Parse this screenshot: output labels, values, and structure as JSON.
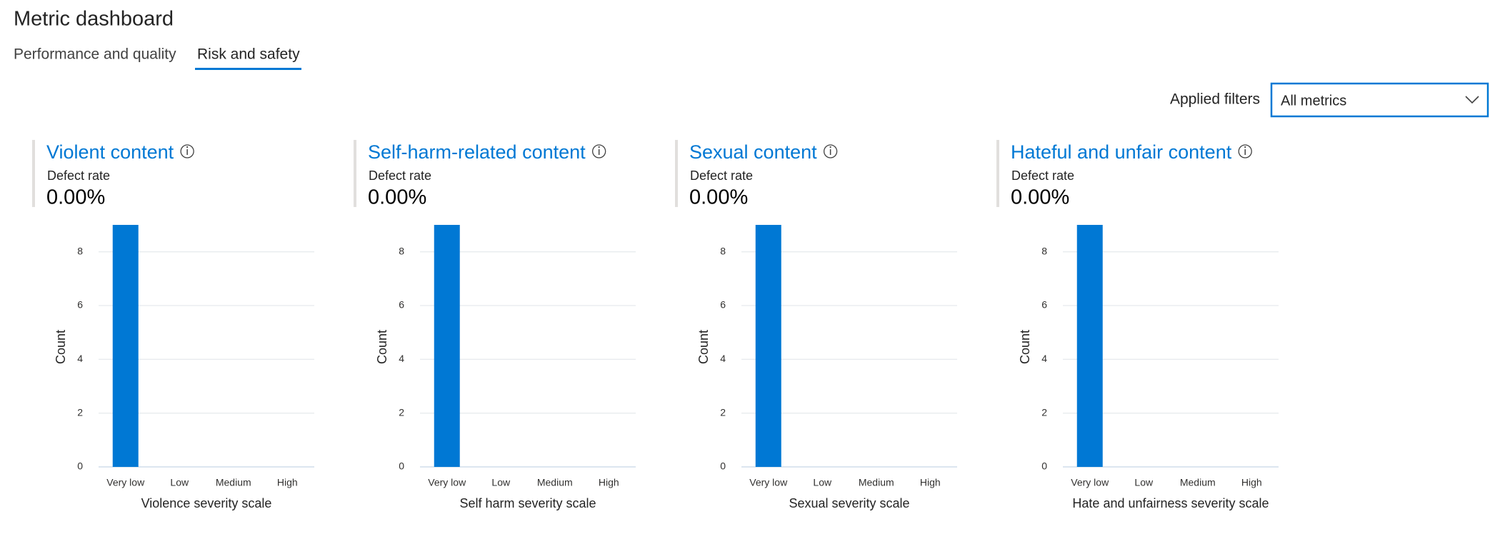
{
  "header": {
    "title": "Metric dashboard"
  },
  "tabs": [
    "Performance and quality",
    "Risk and safety"
  ],
  "filter": {
    "label": "Applied filters",
    "value": "All metrics"
  },
  "charts": [
    {
      "type": "bar",
      "title": "Violent content",
      "metric_label": "Defect rate",
      "metric_value": "0.00%",
      "categories": [
        "Very low",
        "Low",
        "Medium",
        "High"
      ],
      "values": [
        9,
        0,
        0,
        0
      ],
      "color": "#0078d4",
      "ylim": [
        0,
        9
      ],
      "yticks": [
        0,
        2,
        4,
        6,
        8
      ],
      "xlabel": "Violence severity scale",
      "ylabel": "Count"
    },
    {
      "type": "bar",
      "title": "Self-harm-related content",
      "metric_label": "Defect rate",
      "metric_value": "0.00%",
      "categories": [
        "Very low",
        "Low",
        "Medium",
        "High"
      ],
      "values": [
        9,
        0,
        0,
        0
      ],
      "color": "#0078d4",
      "ylim": [
        0,
        9
      ],
      "yticks": [
        0,
        2,
        4,
        6,
        8
      ],
      "xlabel": "Self harm severity scale",
      "ylabel": "Count"
    },
    {
      "type": "bar",
      "title": "Sexual content",
      "metric_label": "Defect rate",
      "metric_value": "0.00%",
      "categories": [
        "Very low",
        "Low",
        "Medium",
        "High"
      ],
      "values": [
        9,
        0,
        0,
        0
      ],
      "color": "#0078d4",
      "ylim": [
        0,
        9
      ],
      "yticks": [
        0,
        2,
        4,
        6,
        8
      ],
      "xlabel": "Sexual severity scale",
      "ylabel": "Count"
    },
    {
      "type": "bar",
      "title": "Hateful and unfair content",
      "metric_label": "Defect rate",
      "metric_value": "0.00%",
      "categories": [
        "Very low",
        "Low",
        "Medium",
        "High"
      ],
      "values": [
        9,
        0,
        0,
        0
      ],
      "color": "#0078d4",
      "ylim": [
        0,
        9
      ],
      "yticks": [
        0,
        2,
        4,
        6,
        8
      ],
      "xlabel": "Hate and unfairness severity scale",
      "ylabel": "Count"
    }
  ]
}
